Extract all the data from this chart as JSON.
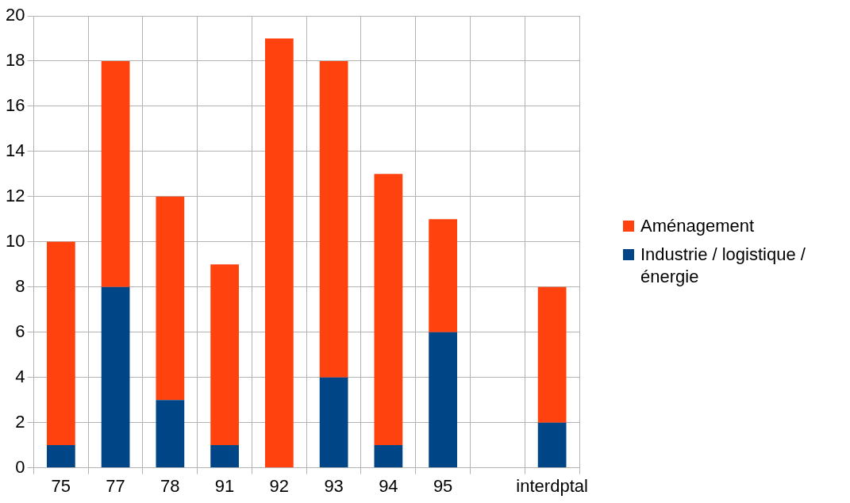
{
  "chart_data": {
    "type": "bar",
    "stacked": true,
    "categories": [
      "75",
      "77",
      "78",
      "91",
      "92",
      "93",
      "94",
      "95",
      null,
      "interdptal"
    ],
    "series": [
      {
        "name": "Industrie / logistique / énergie",
        "color": "#004586",
        "values": [
          1,
          8,
          3,
          1,
          0,
          4,
          1,
          6,
          null,
          2
        ]
      },
      {
        "name": "Aménagement",
        "color": "#ff420e",
        "values": [
          9,
          10,
          9,
          8,
          19,
          14,
          12,
          5,
          null,
          6
        ]
      }
    ],
    "ylim": [
      0,
      20
    ],
    "yticks": [
      0,
      2,
      4,
      6,
      8,
      10,
      12,
      14,
      16,
      18,
      20
    ],
    "grid": true,
    "legend": "right"
  }
}
